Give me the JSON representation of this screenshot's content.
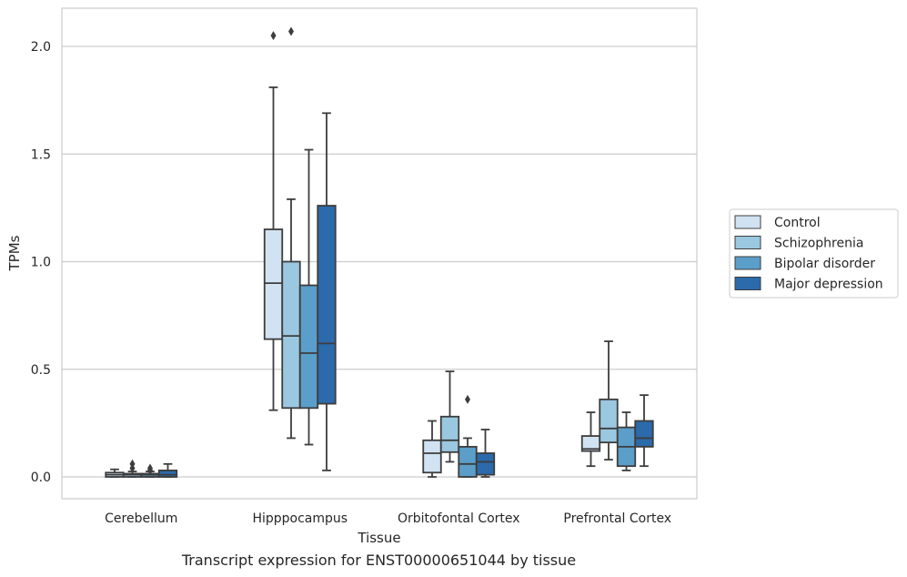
{
  "chart_data": {
    "type": "box",
    "xlabel": "Tissue",
    "ylabel": "TPMs",
    "caption": "Transcript expression for ENST00000651044 by tissue",
    "categories": [
      "Cerebellum",
      "Hipppocampus",
      "Orbitofontal Cortex",
      "Prefrontal Cortex"
    ],
    "ylim": [
      -0.1,
      2.18
    ],
    "yticks": [
      0.0,
      0.5,
      1.0,
      1.5,
      2.0
    ],
    "ytick_labels": [
      "0.0",
      "0.5",
      "1.0",
      "1.5",
      "2.0"
    ],
    "grid": true,
    "legend_position": "center-right",
    "series": [
      {
        "name": "Control",
        "color": "#d1e2f2",
        "boxes": [
          {
            "min": 0.0,
            "q1": 0.0,
            "median": 0.01,
            "q3": 0.02,
            "max": 0.035,
            "outliers": []
          },
          {
            "min": 0.31,
            "q1": 0.64,
            "median": 0.9,
            "q3": 1.15,
            "max": 1.81,
            "outliers": [
              2.05
            ]
          },
          {
            "min": 0.0,
            "q1": 0.02,
            "median": 0.11,
            "q3": 0.17,
            "max": 0.26,
            "outliers": []
          },
          {
            "min": 0.05,
            "q1": 0.12,
            "median": 0.13,
            "q3": 0.19,
            "max": 0.3,
            "outliers": []
          }
        ]
      },
      {
        "name": "Schizophrenia",
        "color": "#9ac8e0",
        "boxes": [
          {
            "min": 0.0,
            "q1": 0.0,
            "median": 0.01,
            "q3": 0.015,
            "max": 0.025,
            "outliers": [
              0.04,
              0.06
            ]
          },
          {
            "min": 0.18,
            "q1": 0.32,
            "median": 0.655,
            "q3": 1.0,
            "max": 1.29,
            "outliers": [
              2.07
            ]
          },
          {
            "min": 0.07,
            "q1": 0.115,
            "median": 0.17,
            "q3": 0.28,
            "max": 0.49,
            "outliers": []
          },
          {
            "min": 0.08,
            "q1": 0.16,
            "median": 0.225,
            "q3": 0.36,
            "max": 0.63,
            "outliers": []
          }
        ]
      },
      {
        "name": "Bipolar disorder",
        "color": "#5a9ec9",
        "boxes": [
          {
            "min": 0.0,
            "q1": 0.0,
            "median": 0.01,
            "q3": 0.015,
            "max": 0.025,
            "outliers": [
              0.03,
              0.04
            ]
          },
          {
            "min": 0.15,
            "q1": 0.32,
            "median": 0.575,
            "q3": 0.89,
            "max": 1.52,
            "outliers": []
          },
          {
            "min": 0.0,
            "q1": 0.0,
            "median": 0.06,
            "q3": 0.14,
            "max": 0.18,
            "outliers": [
              0.36
            ]
          },
          {
            "min": 0.03,
            "q1": 0.05,
            "median": 0.14,
            "q3": 0.23,
            "max": 0.3,
            "outliers": []
          }
        ]
      },
      {
        "name": "Major depression",
        "color": "#2b6aab",
        "boxes": [
          {
            "min": 0.0,
            "q1": 0.0,
            "median": 0.01,
            "q3": 0.03,
            "max": 0.06,
            "outliers": []
          },
          {
            "min": 0.03,
            "q1": 0.34,
            "median": 0.62,
            "q3": 1.26,
            "max": 1.69,
            "outliers": []
          },
          {
            "min": 0.0,
            "q1": 0.01,
            "median": 0.07,
            "q3": 0.11,
            "max": 0.22,
            "outliers": []
          },
          {
            "min": 0.05,
            "q1": 0.14,
            "median": 0.18,
            "q3": 0.26,
            "max": 0.38,
            "outliers": []
          }
        ]
      }
    ]
  }
}
